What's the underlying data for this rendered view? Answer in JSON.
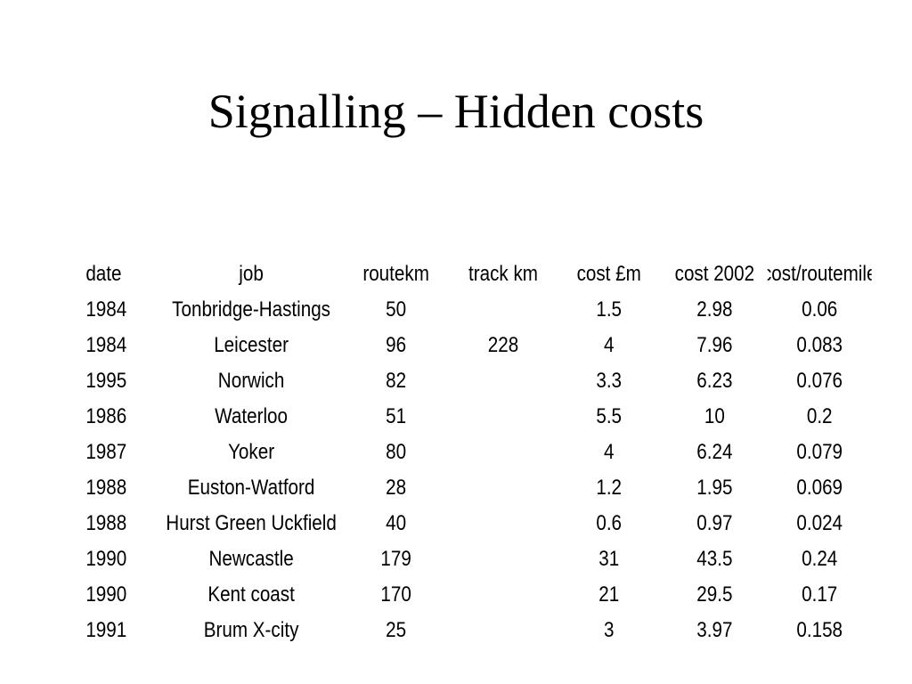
{
  "slide": {
    "title": "Signalling – Hidden costs"
  },
  "table": {
    "headers": {
      "date": "date",
      "job": "job",
      "routekm": "routekm",
      "track_km": "track km",
      "cost_m": "cost £m",
      "cost_2002": "cost 2002",
      "cost_per_routemile": "cost/routemile"
    },
    "rows": [
      {
        "date": "1984",
        "job": "Tonbridge-Hastings",
        "routekm": "50",
        "track_km": "",
        "cost_m": "1.5",
        "cost_2002": "2.98",
        "cost_per_routemile": "0.06"
      },
      {
        "date": "1984",
        "job": "Leicester",
        "routekm": "96",
        "track_km": "228",
        "cost_m": "4",
        "cost_2002": "7.96",
        "cost_per_routemile": "0.083"
      },
      {
        "date": "1995",
        "job": "Norwich",
        "routekm": "82",
        "track_km": "",
        "cost_m": "3.3",
        "cost_2002": "6.23",
        "cost_per_routemile": "0.076"
      },
      {
        "date": "1986",
        "job": "Waterloo",
        "routekm": "51",
        "track_km": "",
        "cost_m": "5.5",
        "cost_2002": "10",
        "cost_per_routemile": "0.2"
      },
      {
        "date": "1987",
        "job": "Yoker",
        "routekm": "80",
        "track_km": "",
        "cost_m": "4",
        "cost_2002": "6.24",
        "cost_per_routemile": "0.079"
      },
      {
        "date": "1988",
        "job": "Euston-Watford",
        "routekm": "28",
        "track_km": "",
        "cost_m": "1.2",
        "cost_2002": "1.95",
        "cost_per_routemile": "0.069"
      },
      {
        "date": "1988",
        "job": "Hurst Green Uckfield",
        "routekm": "40",
        "track_km": "",
        "cost_m": "0.6",
        "cost_2002": "0.97",
        "cost_per_routemile": "0.024"
      },
      {
        "date": "1990",
        "job": "Newcastle",
        "routekm": "179",
        "track_km": "",
        "cost_m": "31",
        "cost_2002": "43.5",
        "cost_per_routemile": "0.24"
      },
      {
        "date": "1990",
        "job": "Kent coast",
        "routekm": "170",
        "track_km": "",
        "cost_m": "21",
        "cost_2002": "29.5",
        "cost_per_routemile": "0.17"
      },
      {
        "date": "1991",
        "job": "Brum X-city",
        "routekm": "25",
        "track_km": "",
        "cost_m": "3",
        "cost_2002": "3.97",
        "cost_per_routemile": "0.158"
      }
    ]
  }
}
